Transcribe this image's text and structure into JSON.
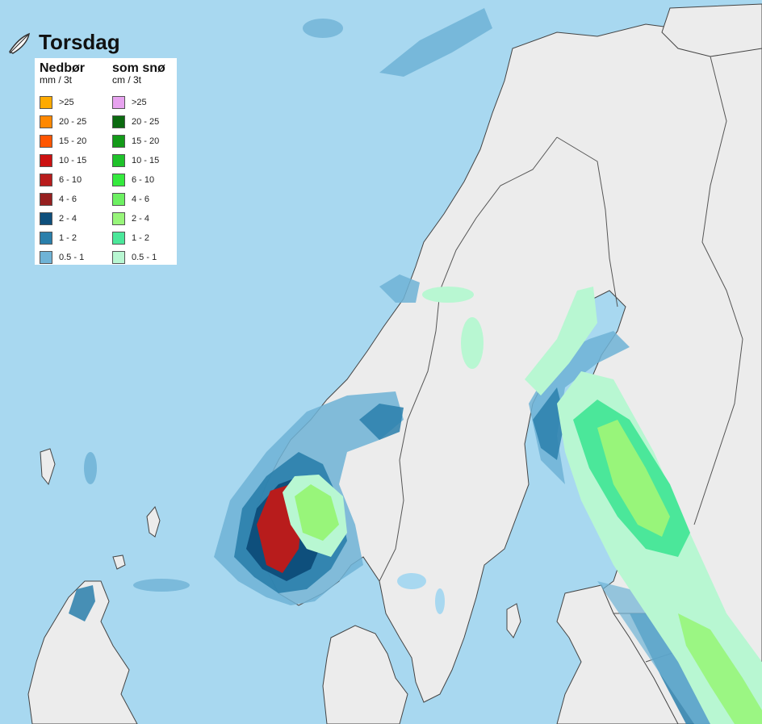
{
  "title": "Torsdag",
  "logo_icon": "feather-icon",
  "legend": {
    "rain": {
      "heading": "Nedbør",
      "unit": "mm / 3t",
      "items": [
        {
          "label": ">25",
          "color": "#ffaa00"
        },
        {
          "label": "20 - 25",
          "color": "#ff8800"
        },
        {
          "label": "15 - 20",
          "color": "#ff5500"
        },
        {
          "label": "10 - 15",
          "color": "#cc1111"
        },
        {
          "label": "6 - 10",
          "color": "#b81c1c"
        },
        {
          "label": "4 - 6",
          "color": "#962020"
        },
        {
          "label": "2 - 4",
          "color": "#0e4f7c"
        },
        {
          "label": "1 - 2",
          "color": "#2a7fab"
        },
        {
          "label": "0.5 - 1",
          "color": "#6fb3d6"
        }
      ]
    },
    "snow": {
      "heading": "som snø",
      "unit": "cm / 3t",
      "items": [
        {
          "label": ">25",
          "color": "#e7a3ef"
        },
        {
          "label": "20 - 25",
          "color": "#0b6a10"
        },
        {
          "label": "15 - 20",
          "color": "#139a19"
        },
        {
          "label": "10 - 15",
          "color": "#1fc22a"
        },
        {
          "label": "6 - 10",
          "color": "#35ea3e"
        },
        {
          "label": "4 - 6",
          "color": "#6df062"
        },
        {
          "label": "2 - 4",
          "color": "#98f57a"
        },
        {
          "label": "1 - 2",
          "color": "#4be79a"
        },
        {
          "label": "0.5 - 1",
          "color": "#b8f7d2"
        }
      ]
    }
  },
  "colors": {
    "sea": "#a8d8f0",
    "land": "#ececec",
    "border": "#555555"
  }
}
